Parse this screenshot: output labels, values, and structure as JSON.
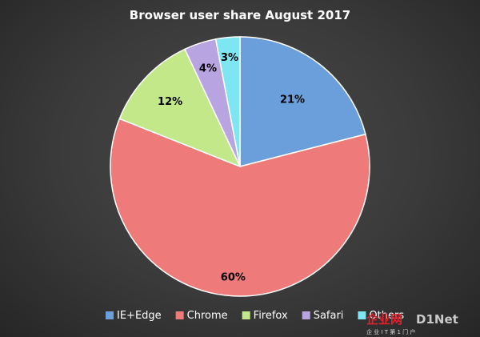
{
  "chart_data": {
    "type": "pie",
    "title": "Browser user share August 2017",
    "categories": [
      "IE+Edge",
      "Chrome",
      "Firefox",
      "Safari",
      "Others"
    ],
    "values": [
      21,
      60,
      12,
      4,
      3
    ],
    "labels": [
      "21%",
      "60%",
      "12%",
      "4%",
      "3%"
    ],
    "colors": [
      "#6a9fdc",
      "#ee7a7a",
      "#c2e88a",
      "#b9a4e2",
      "#7ee6f2"
    ],
    "legend_position": "bottom",
    "start_angle_deg": -90,
    "direction": "clockwise"
  },
  "watermark": {
    "brand_cn": "企业网",
    "brand_en": "D1Net",
    "subtitle": "企 业 I T 第 1 门 户"
  }
}
